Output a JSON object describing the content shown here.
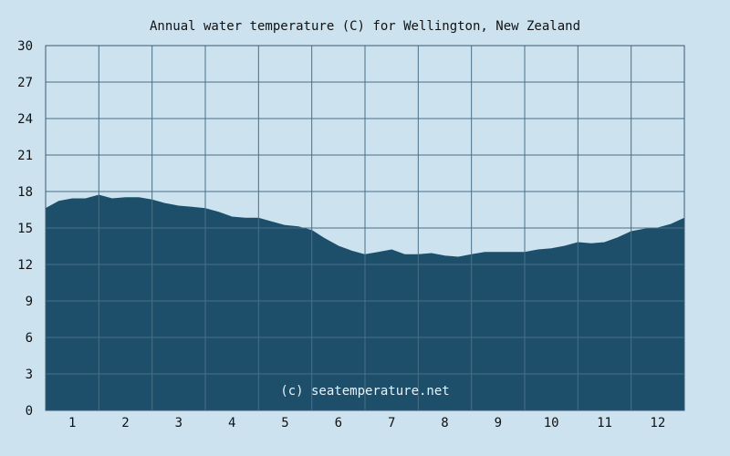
{
  "chart_data": {
    "type": "area",
    "title": "Annual water temperature (C) for Wellington, New Zealand",
    "xlabel": "",
    "ylabel": "",
    "x_tick_labels": [
      "1",
      "2",
      "3",
      "4",
      "5",
      "6",
      "7",
      "8",
      "9",
      "10",
      "11",
      "12"
    ],
    "y_tick_labels": [
      "0",
      "3",
      "6",
      "9",
      "12",
      "15",
      "18",
      "21",
      "24",
      "27",
      "30"
    ],
    "xlim": [
      0.5,
      12.5
    ],
    "ylim": [
      0,
      30
    ],
    "grid": true,
    "legend": "none",
    "watermark": "(c) seatemperature.net",
    "colors": {
      "background": "#cce3ef",
      "fill": "#1d4f6b",
      "grid": "#4a6f86",
      "border": "#3a5a70"
    },
    "series": [
      {
        "x": [
          0.5,
          0.75,
          1.0,
          1.25,
          1.5,
          1.75,
          2.0,
          2.25,
          2.5,
          2.75,
          3.0,
          3.25,
          3.5,
          3.75,
          4.0,
          4.25,
          4.5,
          4.75,
          5.0,
          5.25,
          5.5,
          5.75,
          6.0,
          6.25,
          6.5,
          6.75,
          7.0,
          7.25,
          7.5,
          7.75,
          8.0,
          8.25,
          8.5,
          8.75,
          9.0,
          9.25,
          9.5,
          9.75,
          10.0,
          10.25,
          10.5,
          10.75,
          11.0,
          11.25,
          11.5,
          11.75,
          12.0,
          12.25,
          12.5
        ],
        "values": [
          16.6,
          17.2,
          17.4,
          17.4,
          17.7,
          17.4,
          17.5,
          17.5,
          17.3,
          17.0,
          16.8,
          16.7,
          16.6,
          16.3,
          15.9,
          15.8,
          15.8,
          15.5,
          15.2,
          15.1,
          14.8,
          14.1,
          13.5,
          13.1,
          12.8,
          13.0,
          13.2,
          12.8,
          12.8,
          12.9,
          12.7,
          12.6,
          12.8,
          13.0,
          13.0,
          13.0,
          13.0,
          13.2,
          13.3,
          13.5,
          13.8,
          13.7,
          13.8,
          14.2,
          14.7,
          14.9,
          15.0,
          15.3,
          15.8
        ]
      }
    ]
  }
}
